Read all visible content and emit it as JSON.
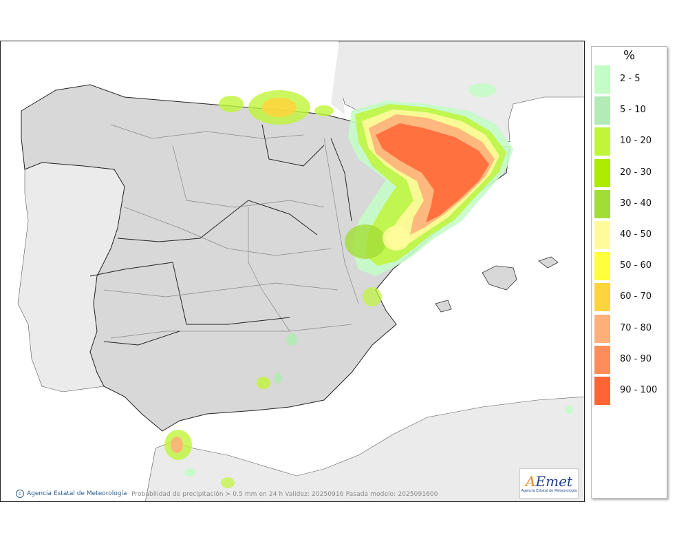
{
  "map": {
    "credit": "Agencia Estatal de Meteorología",
    "caption": "Probabilidad de precipitación > 0.5 mm en 24 h Validez: 20250916 Pasada modelo: 2025091600",
    "logo": {
      "word": "AEmet",
      "subtitle": "Agencia Estatal de Meteorología"
    },
    "colors": {
      "land_iberia": "#dcdcdc",
      "land_other": "#ebebeb",
      "sea": "#ffffff",
      "border": "#222222",
      "region_border": "#888888"
    }
  },
  "legend": {
    "title": "%",
    "items": [
      {
        "label": "2 - 5",
        "color": "#c4fcc8"
      },
      {
        "label": "5 - 10",
        "color": "#b2ebb5"
      },
      {
        "label": "10 - 20",
        "color": "#c0f53a"
      },
      {
        "label": "20 - 30",
        "color": "#acea00"
      },
      {
        "label": "30 - 40",
        "color": "#a2dd36"
      },
      {
        "label": "40 - 50",
        "color": "#fffb9c"
      },
      {
        "label": "50 - 60",
        "color": "#ffff3c"
      },
      {
        "label": "60 - 70",
        "color": "#ffd43c"
      },
      {
        "label": "70 - 80",
        "color": "#ffb07a"
      },
      {
        "label": "80 - 90",
        "color": "#ff8c5a"
      },
      {
        "label": "90 - 100",
        "color": "#ff6434"
      }
    ]
  }
}
